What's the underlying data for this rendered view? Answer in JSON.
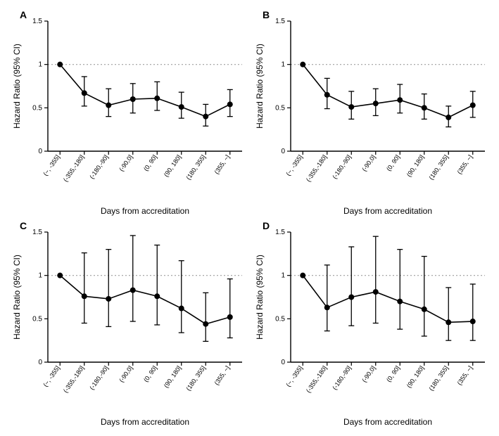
{
  "global": {
    "xlabel": "Days from accreditation",
    "ylabel": "Hazard Ratio (95% CI)",
    "categories": [
      "(~, -355]",
      "(-355,-180]",
      "(-180,-90]",
      "(-90,0]",
      "(0, 90]",
      "(90, 180]",
      "(180, 355]",
      "(355, ~]"
    ],
    "ylim": [
      0,
      1.5
    ],
    "yticks": [
      0,
      0.5,
      1,
      1.5
    ],
    "reference_y": 1.0,
    "background_color": "#ffffff",
    "axis_color": "#000000",
    "line_color": "#000000",
    "marker_color": "#000000",
    "refline_color": "#9e9e9e",
    "label_fontsize": 12,
    "tick_fontsize": 9,
    "panel_letter_fontsize": 14,
    "marker_radius": 4,
    "line_width": 1.6,
    "cap_halfwidth": 4
  },
  "panels": [
    {
      "id": "A",
      "type": "line-errorbar",
      "points": [
        {
          "hr": 1.0,
          "lo": 1.0,
          "hi": 1.0
        },
        {
          "hr": 0.67,
          "lo": 0.52,
          "hi": 0.86
        },
        {
          "hr": 0.53,
          "lo": 0.4,
          "hi": 0.72
        },
        {
          "hr": 0.6,
          "lo": 0.44,
          "hi": 0.78
        },
        {
          "hr": 0.61,
          "lo": 0.47,
          "hi": 0.8
        },
        {
          "hr": 0.51,
          "lo": 0.38,
          "hi": 0.68
        },
        {
          "hr": 0.4,
          "lo": 0.29,
          "hi": 0.54
        },
        {
          "hr": 0.54,
          "lo": 0.4,
          "hi": 0.71
        }
      ]
    },
    {
      "id": "B",
      "type": "line-errorbar",
      "points": [
        {
          "hr": 1.0,
          "lo": 1.0,
          "hi": 1.0
        },
        {
          "hr": 0.65,
          "lo": 0.49,
          "hi": 0.84
        },
        {
          "hr": 0.51,
          "lo": 0.37,
          "hi": 0.69
        },
        {
          "hr": 0.55,
          "lo": 0.41,
          "hi": 0.72
        },
        {
          "hr": 0.59,
          "lo": 0.44,
          "hi": 0.77
        },
        {
          "hr": 0.5,
          "lo": 0.37,
          "hi": 0.66
        },
        {
          "hr": 0.39,
          "lo": 0.28,
          "hi": 0.52
        },
        {
          "hr": 0.53,
          "lo": 0.39,
          "hi": 0.69
        }
      ]
    },
    {
      "id": "C",
      "type": "line-errorbar",
      "points": [
        {
          "hr": 1.0,
          "lo": 1.0,
          "hi": 1.0
        },
        {
          "hr": 0.76,
          "lo": 0.45,
          "hi": 1.26
        },
        {
          "hr": 0.73,
          "lo": 0.41,
          "hi": 1.3
        },
        {
          "hr": 0.83,
          "lo": 0.47,
          "hi": 1.46
        },
        {
          "hr": 0.76,
          "lo": 0.43,
          "hi": 1.35
        },
        {
          "hr": 0.62,
          "lo": 0.34,
          "hi": 1.17
        },
        {
          "hr": 0.44,
          "lo": 0.24,
          "hi": 0.8
        },
        {
          "hr": 0.52,
          "lo": 0.28,
          "hi": 0.96
        }
      ]
    },
    {
      "id": "D",
      "type": "line-errorbar",
      "points": [
        {
          "hr": 1.0,
          "lo": 1.0,
          "hi": 1.0
        },
        {
          "hr": 0.63,
          "lo": 0.36,
          "hi": 1.12
        },
        {
          "hr": 0.75,
          "lo": 0.42,
          "hi": 1.33
        },
        {
          "hr": 0.81,
          "lo": 0.45,
          "hi": 1.45
        },
        {
          "hr": 0.7,
          "lo": 0.38,
          "hi": 1.3
        },
        {
          "hr": 0.61,
          "lo": 0.3,
          "hi": 1.22
        },
        {
          "hr": 0.46,
          "lo": 0.25,
          "hi": 0.86
        },
        {
          "hr": 0.47,
          "lo": 0.25,
          "hi": 0.9
        }
      ]
    }
  ]
}
